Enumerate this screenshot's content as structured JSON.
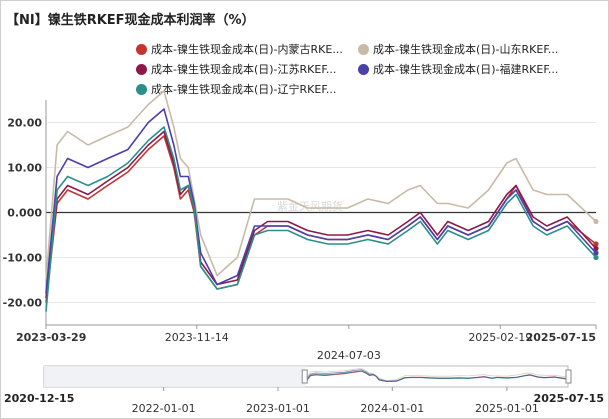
{
  "chart_data": {
    "type": "line",
    "title": "【NI】镍生铁RKEF现金成本利润率（%）",
    "watermark": "紫金天风期货",
    "x_range": [
      "2023-03-29",
      "2025-07-15"
    ],
    "x_ticks": [
      "2023-03-29",
      "2023-11-14",
      "2024-07-03",
      "2025-02-19",
      "2025-07-15"
    ],
    "x_ticks_bold": [
      "2023-03-29",
      "2025-07-15"
    ],
    "ylim": [
      -25,
      25
    ],
    "y_ticks": [
      "20.00",
      "10.00",
      "0.000",
      "-10.00",
      "-20.00"
    ],
    "y_tick_values": [
      20,
      10,
      0,
      -10,
      -20
    ],
    "grid": true,
    "legend_position": "top",
    "series": [
      {
        "name": "成本-镍生铁现金成本(日)-内蒙古RKE...",
        "color": "#c23531",
        "points": [
          [
            "2023-03-29",
            -20
          ],
          [
            "2023-04-15",
            2
          ],
          [
            "2023-05-01",
            5
          ],
          [
            "2023-06-01",
            3
          ],
          [
            "2023-07-01",
            6
          ],
          [
            "2023-08-01",
            9
          ],
          [
            "2023-09-01",
            14
          ],
          [
            "2023-09-25",
            17
          ],
          [
            "2023-10-10",
            10
          ],
          [
            "2023-10-20",
            3
          ],
          [
            "2023-11-01",
            5
          ],
          [
            "2023-11-10",
            0
          ],
          [
            "2023-11-20",
            -12
          ],
          [
            "2023-12-15",
            -17
          ],
          [
            "2024-01-15",
            -16
          ],
          [
            "2024-02-10",
            -5
          ],
          [
            "2024-03-01",
            -3
          ],
          [
            "2024-04-01",
            -3
          ],
          [
            "2024-05-01",
            -5
          ],
          [
            "2024-06-01",
            -6
          ],
          [
            "2024-07-01",
            -6
          ],
          [
            "2024-08-01",
            -5
          ],
          [
            "2024-09-01",
            -6
          ],
          [
            "2024-10-01",
            -3
          ],
          [
            "2024-10-20",
            -1
          ],
          [
            "2024-11-15",
            -6
          ],
          [
            "2024-12-01",
            -3
          ],
          [
            "2025-01-01",
            -5
          ],
          [
            "2025-02-01",
            -3
          ],
          [
            "2025-03-01",
            3
          ],
          [
            "2025-03-15",
            6
          ],
          [
            "2025-04-10",
            -2
          ],
          [
            "2025-05-01",
            -4
          ],
          [
            "2025-06-01",
            -2
          ],
          [
            "2025-07-15",
            -7
          ]
        ]
      },
      {
        "name": "成本-镍生铁现金成本(日)-山东RKEF...",
        "color": "#c7bba6",
        "points": [
          [
            "2023-03-29",
            -15
          ],
          [
            "2023-04-15",
            15
          ],
          [
            "2023-05-01",
            18
          ],
          [
            "2023-06-01",
            15
          ],
          [
            "2023-07-01",
            17
          ],
          [
            "2023-08-01",
            19
          ],
          [
            "2023-09-01",
            24
          ],
          [
            "2023-09-25",
            27
          ],
          [
            "2023-10-10",
            19
          ],
          [
            "2023-10-20",
            12
          ],
          [
            "2023-11-01",
            10
          ],
          [
            "2023-11-10",
            3
          ],
          [
            "2023-11-20",
            -5
          ],
          [
            "2023-12-15",
            -14
          ],
          [
            "2024-01-15",
            -10
          ],
          [
            "2024-02-10",
            3
          ],
          [
            "2024-03-01",
            3
          ],
          [
            "2024-04-01",
            3
          ],
          [
            "2024-05-01",
            1
          ],
          [
            "2024-06-01",
            1
          ],
          [
            "2024-07-01",
            1
          ],
          [
            "2024-08-01",
            3
          ],
          [
            "2024-09-01",
            2
          ],
          [
            "2024-10-01",
            5
          ],
          [
            "2024-10-20",
            6
          ],
          [
            "2024-11-15",
            2
          ],
          [
            "2024-12-01",
            2
          ],
          [
            "2025-01-01",
            1
          ],
          [
            "2025-02-01",
            5
          ],
          [
            "2025-03-01",
            11
          ],
          [
            "2025-03-15",
            12
          ],
          [
            "2025-04-10",
            5
          ],
          [
            "2025-05-01",
            4
          ],
          [
            "2025-06-01",
            4
          ],
          [
            "2025-07-15",
            -2
          ]
        ]
      },
      {
        "name": "成本-镍生铁现金成本(日)-江苏RKEF...",
        "color": "#8b1a4a",
        "points": [
          [
            "2023-03-29",
            -19
          ],
          [
            "2023-04-15",
            3
          ],
          [
            "2023-05-01",
            6
          ],
          [
            "2023-06-01",
            4
          ],
          [
            "2023-07-01",
            7
          ],
          [
            "2023-08-01",
            10
          ],
          [
            "2023-09-01",
            15
          ],
          [
            "2023-09-25",
            18
          ],
          [
            "2023-10-10",
            11
          ],
          [
            "2023-10-20",
            4
          ],
          [
            "2023-11-01",
            6
          ],
          [
            "2023-11-10",
            1
          ],
          [
            "2023-11-20",
            -11
          ],
          [
            "2023-12-15",
            -16
          ],
          [
            "2024-01-15",
            -15
          ],
          [
            "2024-02-10",
            -4
          ],
          [
            "2024-03-01",
            -2
          ],
          [
            "2024-04-01",
            -2
          ],
          [
            "2024-05-01",
            -4
          ],
          [
            "2024-06-01",
            -5
          ],
          [
            "2024-07-01",
            -5
          ],
          [
            "2024-08-01",
            -4
          ],
          [
            "2024-09-01",
            -5
          ],
          [
            "2024-10-01",
            -2
          ],
          [
            "2024-10-20",
            0
          ],
          [
            "2024-11-15",
            -5
          ],
          [
            "2024-12-01",
            -2
          ],
          [
            "2025-01-01",
            -4
          ],
          [
            "2025-02-01",
            -2
          ],
          [
            "2025-03-01",
            4
          ],
          [
            "2025-03-15",
            6
          ],
          [
            "2025-04-10",
            -1
          ],
          [
            "2025-05-01",
            -3
          ],
          [
            "2025-06-01",
            -1
          ],
          [
            "2025-07-15",
            -8
          ]
        ]
      },
      {
        "name": "成本-镍生铁现金成本(日)-福建RKEF...",
        "color": "#4b3fa8",
        "points": [
          [
            "2023-03-29",
            -18
          ],
          [
            "2023-04-15",
            8
          ],
          [
            "2023-05-01",
            12
          ],
          [
            "2023-06-01",
            10
          ],
          [
            "2023-07-01",
            12
          ],
          [
            "2023-08-01",
            14
          ],
          [
            "2023-09-01",
            20
          ],
          [
            "2023-09-25",
            23
          ],
          [
            "2023-10-10",
            15
          ],
          [
            "2023-10-20",
            8
          ],
          [
            "2023-11-01",
            8
          ],
          [
            "2023-11-10",
            2
          ],
          [
            "2023-11-20",
            -9
          ],
          [
            "2023-12-15",
            -16
          ],
          [
            "2024-01-15",
            -14
          ],
          [
            "2024-02-10",
            -3
          ],
          [
            "2024-03-01",
            -3
          ],
          [
            "2024-04-01",
            -3
          ],
          [
            "2024-05-01",
            -5
          ],
          [
            "2024-06-01",
            -6
          ],
          [
            "2024-07-01",
            -6
          ],
          [
            "2024-08-01",
            -5
          ],
          [
            "2024-09-01",
            -6
          ],
          [
            "2024-10-01",
            -3
          ],
          [
            "2024-10-20",
            -1
          ],
          [
            "2024-11-15",
            -6
          ],
          [
            "2024-12-01",
            -3
          ],
          [
            "2025-01-01",
            -5
          ],
          [
            "2025-02-01",
            -3
          ],
          [
            "2025-03-01",
            3
          ],
          [
            "2025-03-15",
            5
          ],
          [
            "2025-04-10",
            -2
          ],
          [
            "2025-05-01",
            -4
          ],
          [
            "2025-06-01",
            -2
          ],
          [
            "2025-07-15",
            -9
          ]
        ]
      },
      {
        "name": "成本-镍生铁现金成本(日)-辽宁RKEF...",
        "color": "#2a8f8a",
        "points": [
          [
            "2023-03-29",
            -22
          ],
          [
            "2023-04-15",
            5
          ],
          [
            "2023-05-01",
            8
          ],
          [
            "2023-06-01",
            6
          ],
          [
            "2023-07-01",
            8
          ],
          [
            "2023-08-01",
            11
          ],
          [
            "2023-09-01",
            16
          ],
          [
            "2023-09-25",
            19
          ],
          [
            "2023-10-10",
            12
          ],
          [
            "2023-10-20",
            5
          ],
          [
            "2023-11-01",
            6
          ],
          [
            "2023-11-10",
            1
          ],
          [
            "2023-11-20",
            -12
          ],
          [
            "2023-12-15",
            -17
          ],
          [
            "2024-01-15",
            -16
          ],
          [
            "2024-02-10",
            -5
          ],
          [
            "2024-03-01",
            -4
          ],
          [
            "2024-04-01",
            -4
          ],
          [
            "2024-05-01",
            -6
          ],
          [
            "2024-06-01",
            -7
          ],
          [
            "2024-07-01",
            -7
          ],
          [
            "2024-08-01",
            -6
          ],
          [
            "2024-09-01",
            -7
          ],
          [
            "2024-10-01",
            -4
          ],
          [
            "2024-10-20",
            -2
          ],
          [
            "2024-11-15",
            -7
          ],
          [
            "2024-12-01",
            -4
          ],
          [
            "2025-01-01",
            -6
          ],
          [
            "2025-02-01",
            -4
          ],
          [
            "2025-03-01",
            2
          ],
          [
            "2025-03-15",
            4
          ],
          [
            "2025-04-10",
            -3
          ],
          [
            "2025-05-01",
            -5
          ],
          [
            "2025-06-01",
            -3
          ],
          [
            "2025-07-15",
            -10
          ]
        ]
      }
    ],
    "slider": {
      "range": [
        "2020-12-15",
        "2025-07-15"
      ],
      "start_label": "2020-12-15",
      "end_label": "2025-07-15",
      "ticks": [
        "2022-01-01",
        "2023-01-01",
        "2024-01-01",
        "2025-01-01"
      ],
      "selected_start": "2023-03-29",
      "selected_end": "2025-07-15"
    }
  }
}
